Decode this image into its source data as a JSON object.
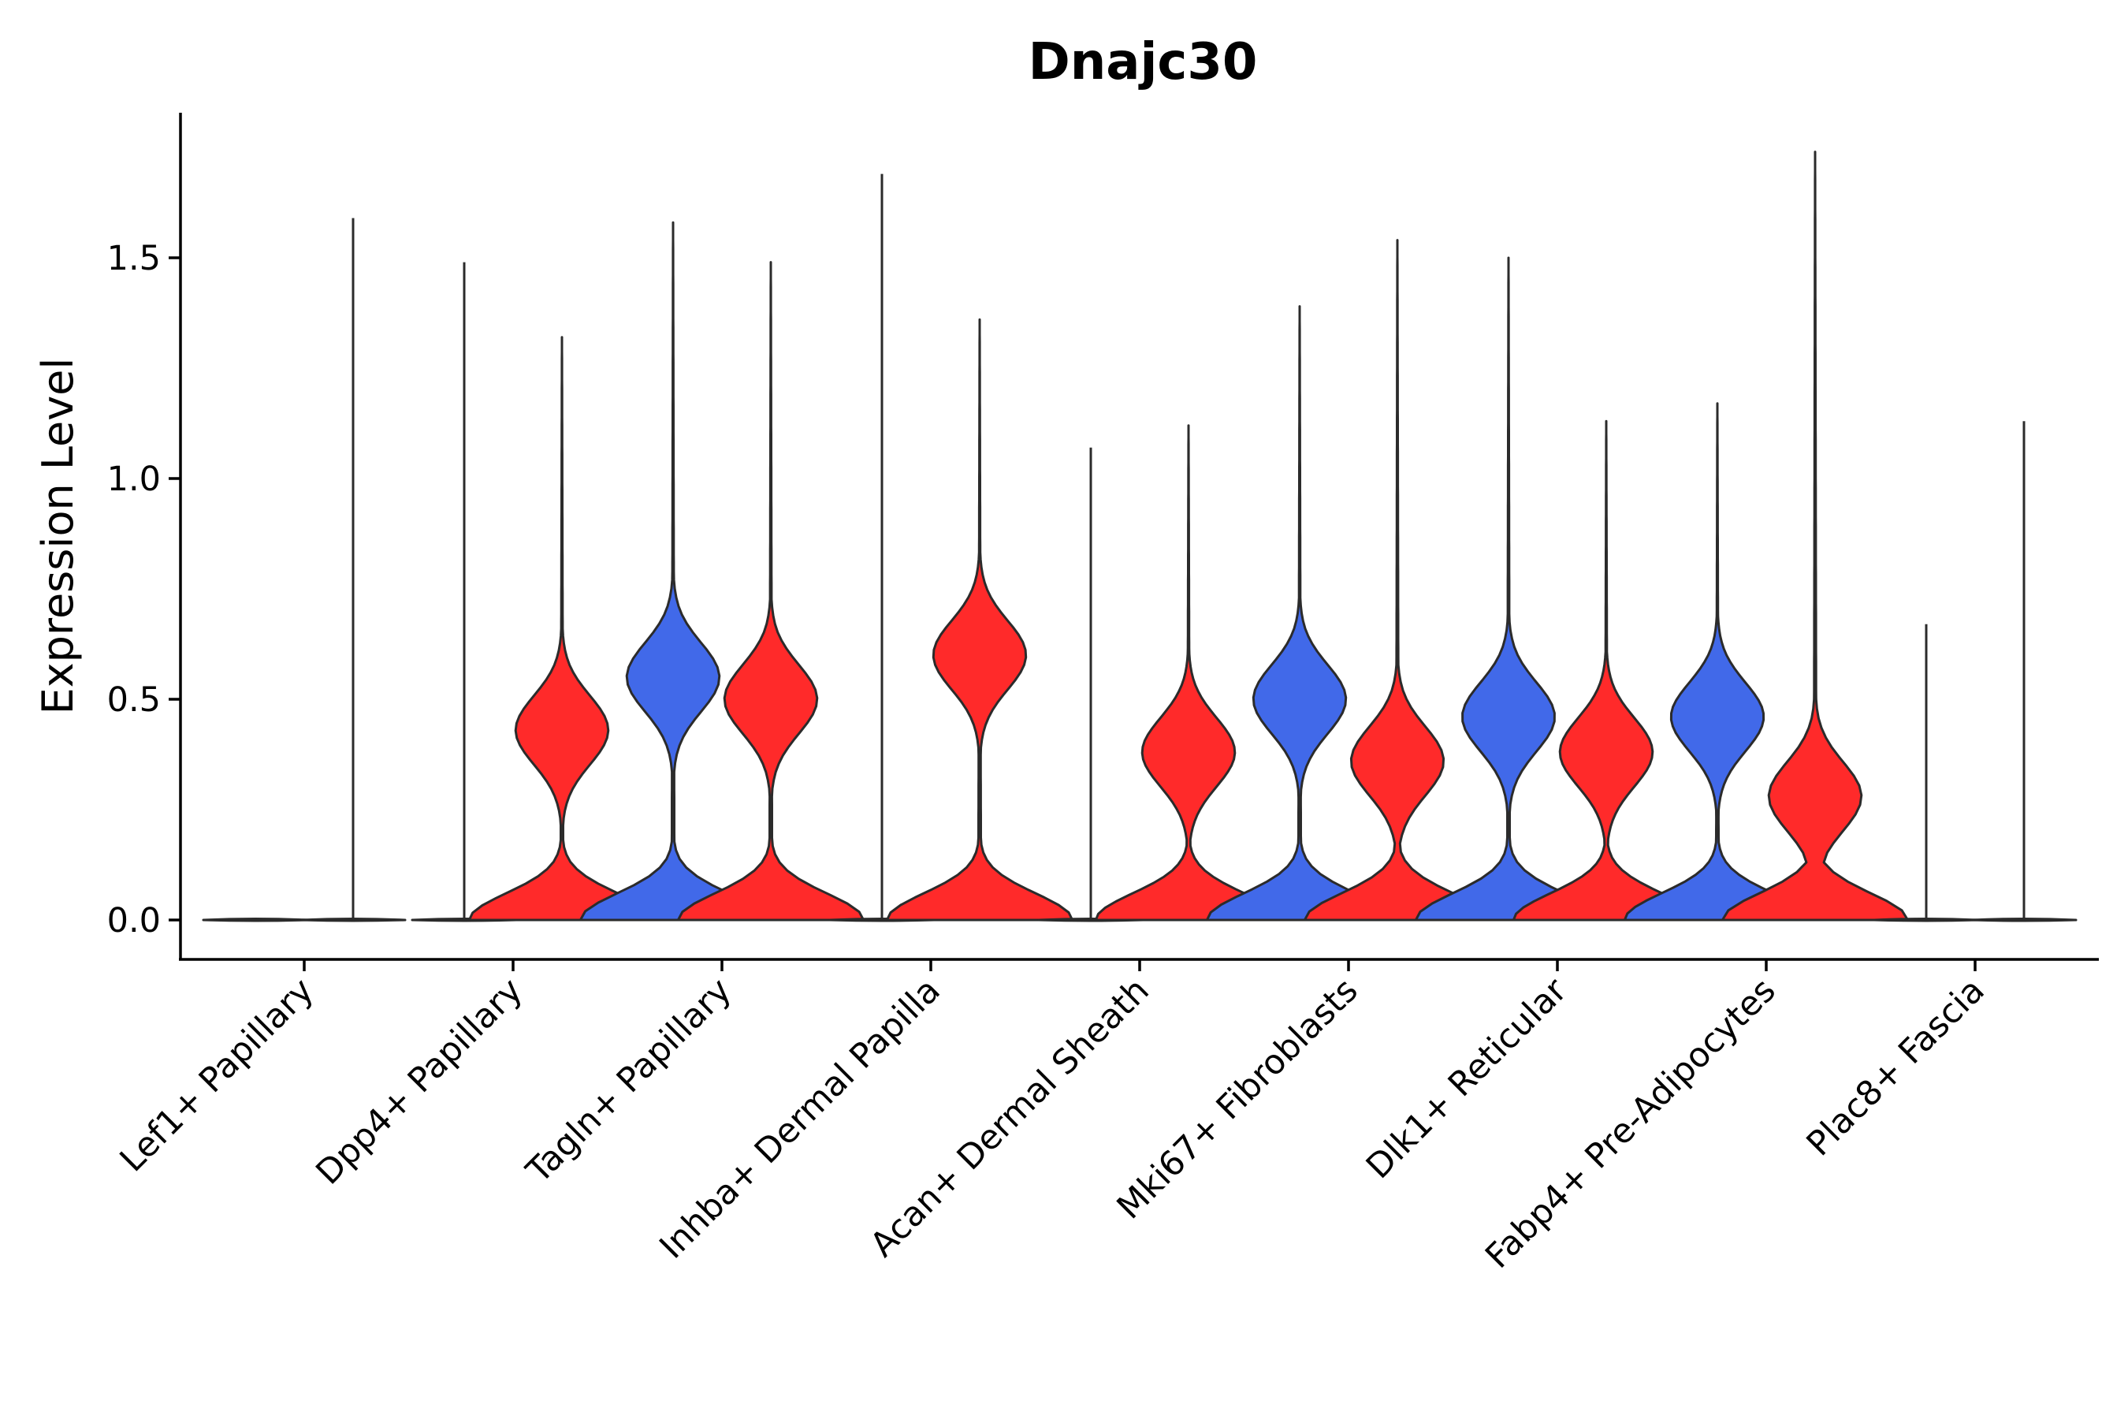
{
  "chart_data": {
    "type": "violin",
    "title": "Dnajc30",
    "ylabel": "Expression Level",
    "xlabel": "",
    "ylim": [
      -0.09,
      1.84
    ],
    "yticks": [
      0.0,
      0.5,
      1.0,
      1.5
    ],
    "ytick_labels": [
      "0.0",
      "0.5",
      "1.0",
      "1.5"
    ],
    "split_colors": {
      "left": "#4169E9",
      "right": "#FF2A2A",
      "flat": "#ffffff"
    },
    "categories": [
      "Lef1+ Papillary",
      "Dpp4+ Papillary",
      "Tagln+ Papillary",
      "Inhba+ Dermal Papilla",
      "Acan+ Dermal Sheath",
      "Mki67+ Fibroblasts",
      "Dlk1+ Reticular",
      "Fabp4+ Pre-Adipocytes",
      "Plac8+ Fascia"
    ],
    "violins": [
      {
        "category": "Lef1+ Papillary",
        "side": "left",
        "max": 0.0,
        "shape": "flat"
      },
      {
        "category": "Lef1+ Papillary",
        "side": "right",
        "max": 1.59,
        "shape": "flat"
      },
      {
        "category": "Dpp4+ Papillary",
        "side": "left",
        "max": 1.49,
        "shape": "flat"
      },
      {
        "category": "Dpp4+ Papillary",
        "side": "right",
        "max": 1.32,
        "shape": "bimodal",
        "mode": 0.43
      },
      {
        "category": "Tagln+ Papillary",
        "side": "left",
        "max": 1.58,
        "shape": "bimodal",
        "mode": 0.55
      },
      {
        "category": "Tagln+ Papillary",
        "side": "right",
        "max": 1.49,
        "shape": "bimodal",
        "mode": 0.5
      },
      {
        "category": "Inhba+ Dermal Papilla",
        "side": "left",
        "max": 1.69,
        "shape": "flat"
      },
      {
        "category": "Inhba+ Dermal Papilla",
        "side": "right",
        "max": 1.36,
        "shape": "bimodal",
        "mode": 0.6
      },
      {
        "category": "Acan+ Dermal Sheath",
        "side": "left",
        "max": 1.07,
        "shape": "flat"
      },
      {
        "category": "Acan+ Dermal Sheath",
        "side": "right",
        "max": 1.12,
        "shape": "bimodal",
        "mode": 0.38
      },
      {
        "category": "Mki67+ Fibroblasts",
        "side": "left",
        "max": 1.39,
        "shape": "bimodal",
        "mode": 0.5
      },
      {
        "category": "Mki67+ Fibroblasts",
        "side": "right",
        "max": 1.54,
        "shape": "bimodal",
        "mode": 0.36
      },
      {
        "category": "Dlk1+ Reticular",
        "side": "left",
        "max": 1.5,
        "shape": "bimodal",
        "mode": 0.46
      },
      {
        "category": "Dlk1+ Reticular",
        "side": "right",
        "max": 1.13,
        "shape": "bimodal",
        "mode": 0.38
      },
      {
        "category": "Fabp4+ Pre-Adipocytes",
        "side": "left",
        "max": 1.17,
        "shape": "bimodal",
        "mode": 0.46
      },
      {
        "category": "Fabp4+ Pre-Adipocytes",
        "side": "right",
        "max": 1.74,
        "shape": "bimodal",
        "mode": 0.28
      },
      {
        "category": "Plac8+ Fascia",
        "side": "left",
        "max": 0.67,
        "shape": "flat"
      },
      {
        "category": "Plac8+ Fascia",
        "side": "right",
        "max": 1.13,
        "shape": "flat"
      }
    ]
  }
}
